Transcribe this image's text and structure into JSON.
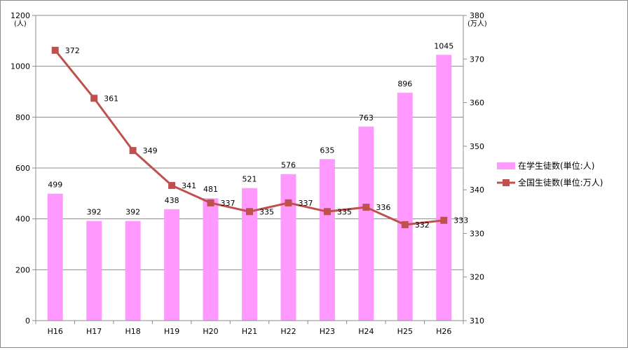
{
  "chart_data": {
    "type": "bar",
    "categories": [
      "H16",
      "H17",
      "H18",
      "H19",
      "H20",
      "H21",
      "H22",
      "H23",
      "H24",
      "H25",
      "H26"
    ],
    "series": [
      {
        "name": "在学生徒数(単位:人)",
        "type": "bar",
        "axis": "left",
        "color": "#ff99ff",
        "values": [
          499,
          392,
          392,
          438,
          481,
          521,
          576,
          635,
          763,
          896,
          1045
        ]
      },
      {
        "name": "全国生徒数(単位:万人)",
        "type": "line",
        "axis": "right",
        "color": "#c0504d",
        "values": [
          372,
          361,
          349,
          341,
          337,
          335,
          337,
          335,
          336,
          332,
          333
        ]
      }
    ],
    "y_left": {
      "unit_label": "(人)",
      "ylim": [
        0,
        1200
      ],
      "ticks": [
        0,
        200,
        400,
        600,
        800,
        1000,
        1200
      ]
    },
    "y_right": {
      "unit_label": "(万人)",
      "ylim": [
        310,
        380
      ],
      "ticks": [
        310,
        320,
        330,
        340,
        350,
        360,
        370,
        380
      ]
    },
    "grid": true,
    "legend_position": "right"
  }
}
